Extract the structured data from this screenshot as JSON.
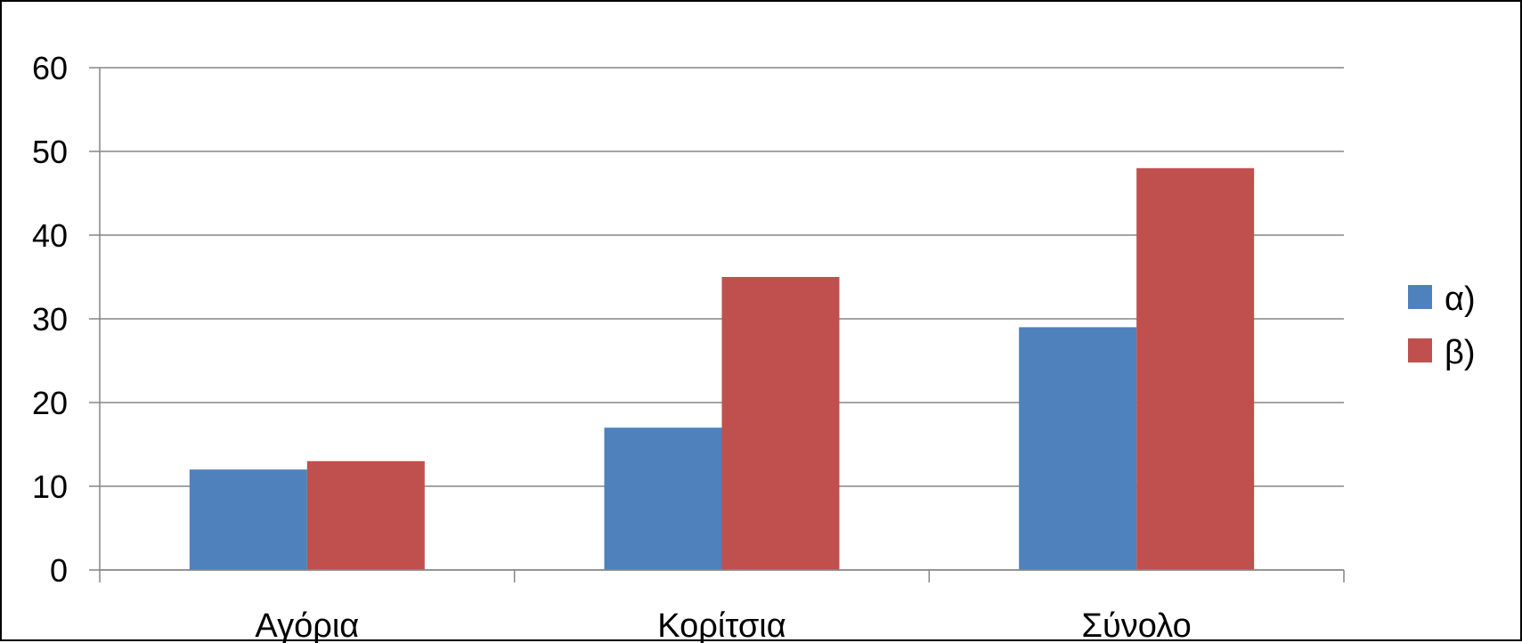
{
  "chart_data": {
    "type": "bar",
    "categories": [
      "Αγόρια",
      "Κορίτσια",
      "Σύνολο"
    ],
    "series": [
      {
        "name": "α)",
        "values": [
          12,
          17,
          29
        ],
        "color": "#4F81BD"
      },
      {
        "name": "β)",
        "values": [
          13,
          35,
          48
        ],
        "color": "#C0504D"
      }
    ],
    "yticks": [
      "0",
      "10",
      "20",
      "30",
      "40",
      "50",
      "60"
    ],
    "ylim": [
      0,
      60
    ],
    "grid": true,
    "legend": "right"
  }
}
